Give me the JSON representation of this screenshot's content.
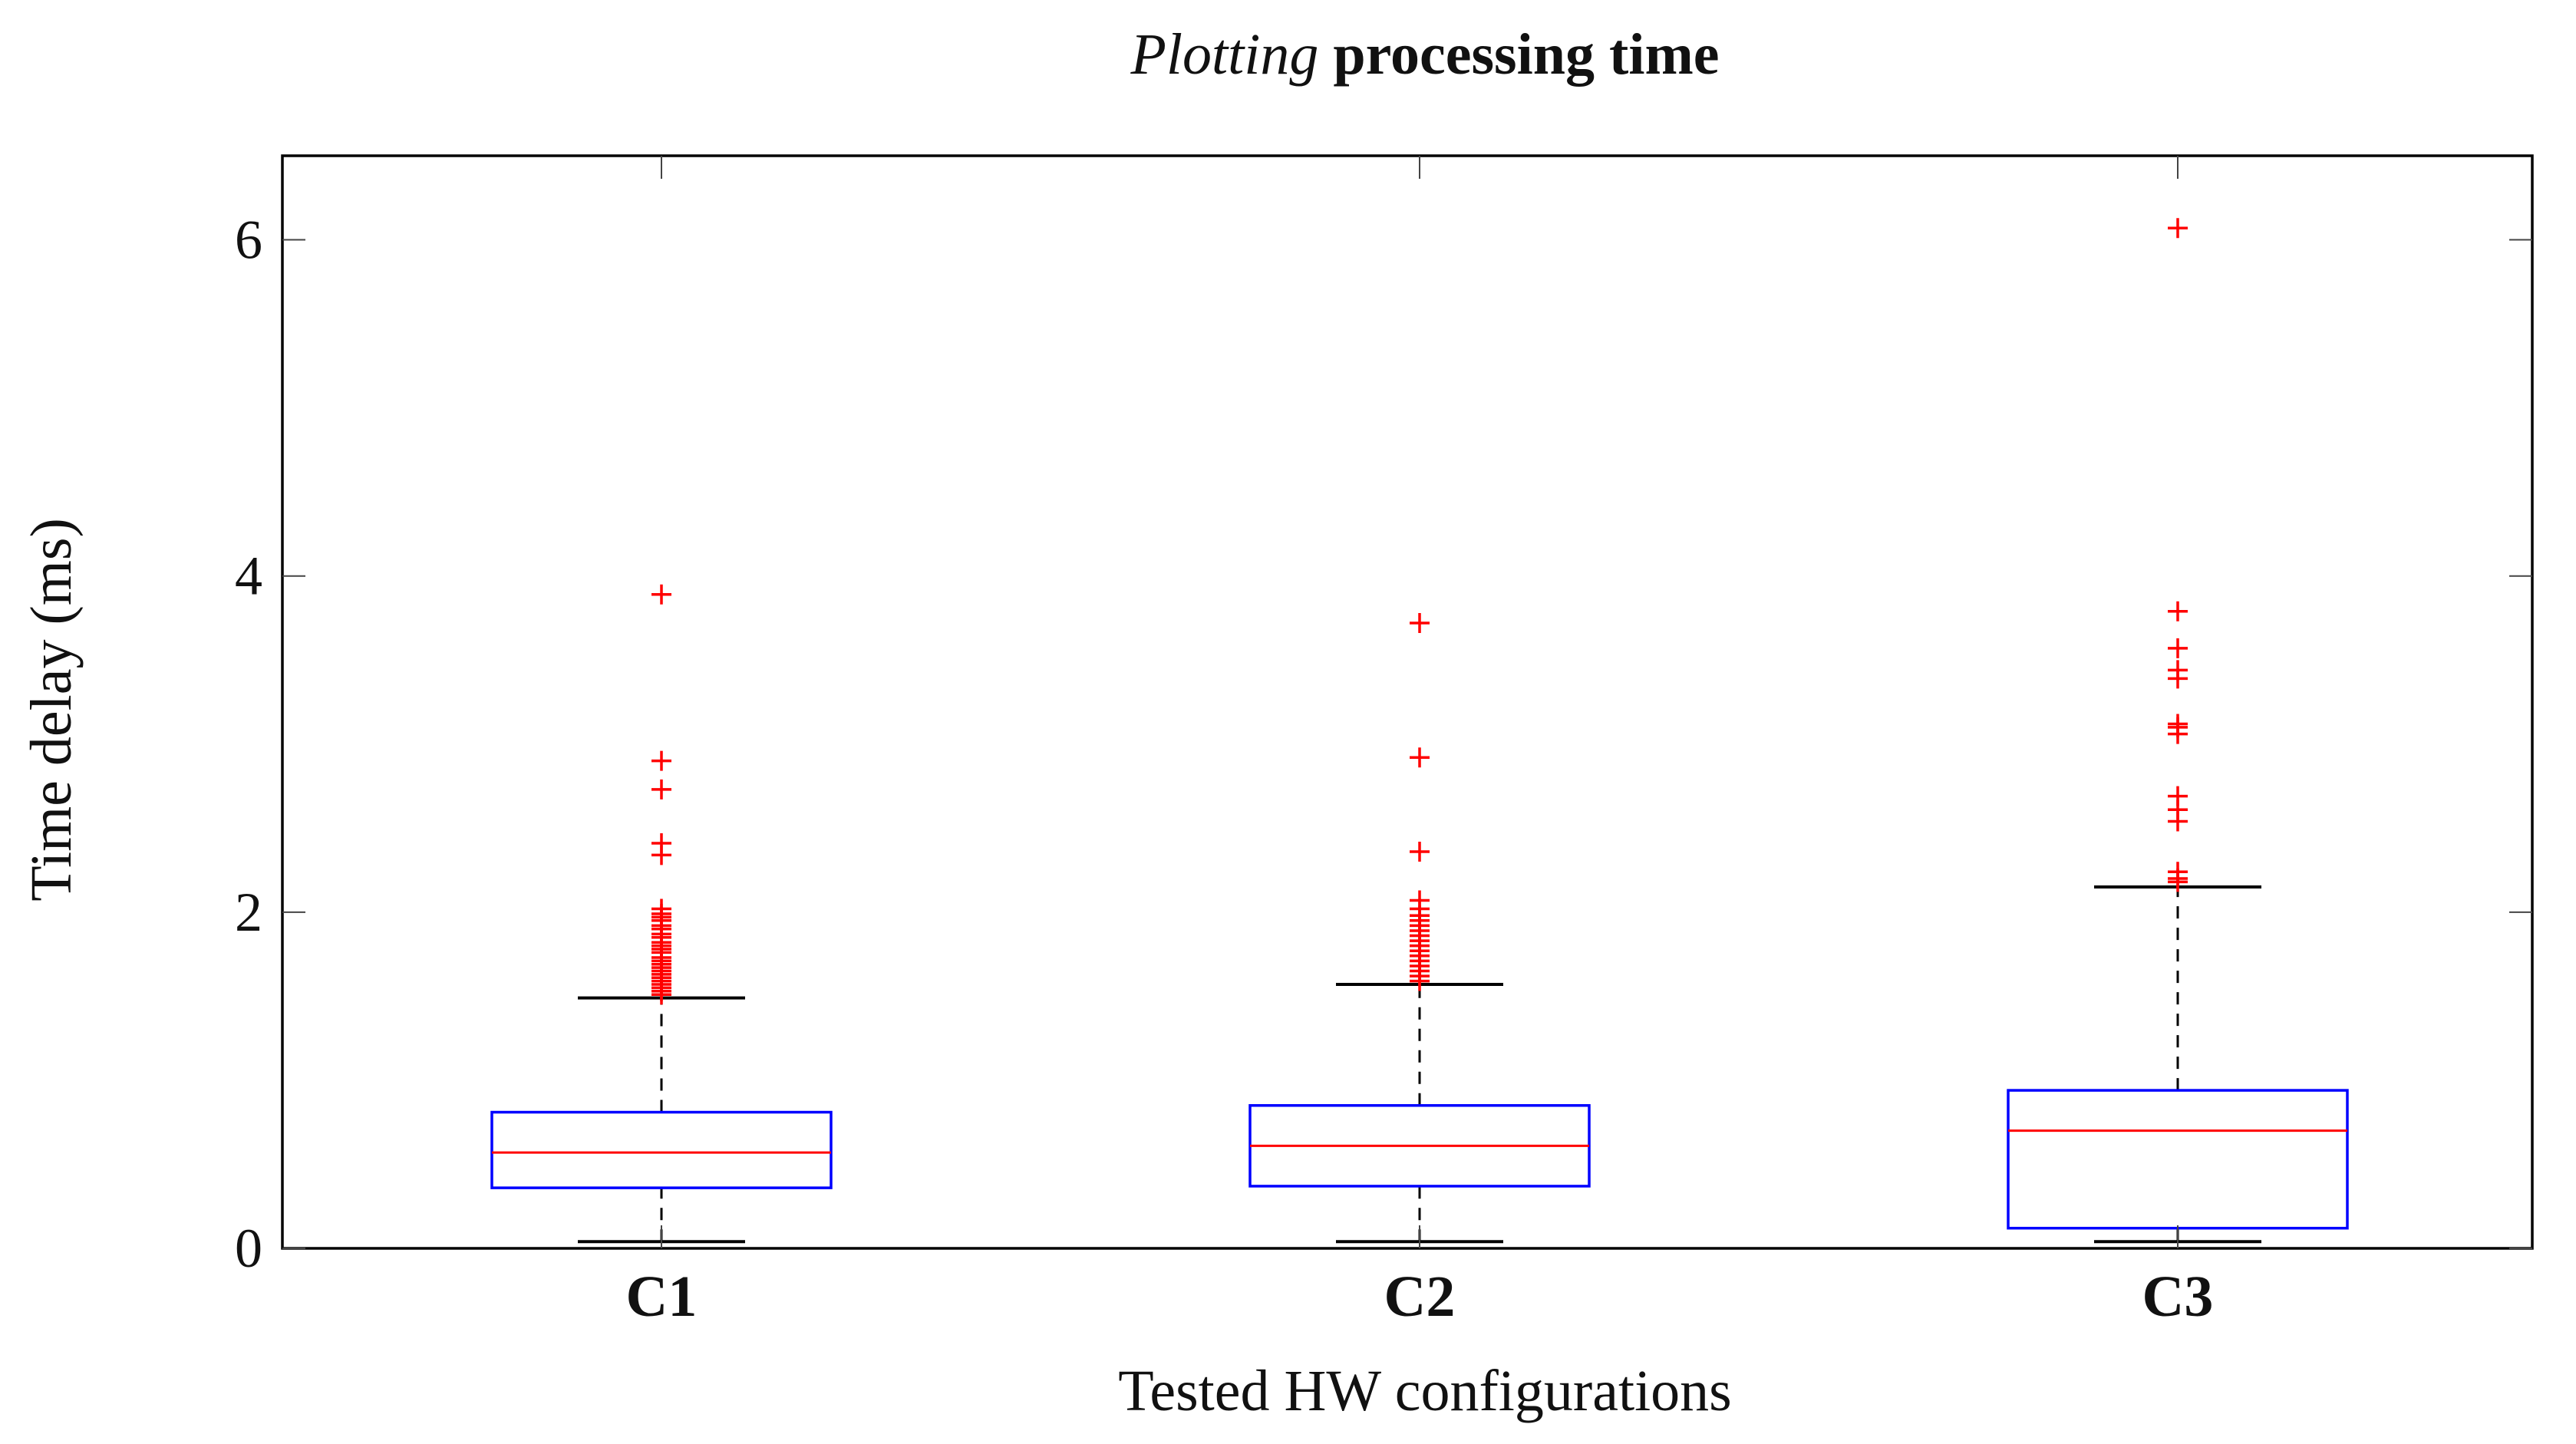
{
  "chart_data": {
    "type": "boxplot",
    "title_italic": "Plotting",
    "title_rest": " processing time",
    "xlabel": "Tested HW configurations",
    "ylabel": "Time delay (ms)",
    "ylim": [
      0,
      6.5
    ],
    "yticks": [
      0,
      2,
      4,
      6
    ],
    "ytick_labels": [
      "0",
      "2",
      "4",
      "6"
    ],
    "categories": [
      "C1",
      "C2",
      "C3"
    ],
    "boxes": [
      {
        "name": "C1",
        "whisker_low": 0.04,
        "q1": 0.36,
        "median": 0.57,
        "q3": 0.81,
        "whisker_high": 1.49,
        "outliers": [
          3.89,
          2.9,
          2.73,
          2.41,
          2.34,
          2.02,
          1.99,
          1.97,
          1.95,
          1.92,
          1.9,
          1.87,
          1.85,
          1.82,
          1.8,
          1.78,
          1.76,
          1.73,
          1.71,
          1.69,
          1.67,
          1.65,
          1.63,
          1.61,
          1.59,
          1.57,
          1.55,
          1.53,
          1.51
        ]
      },
      {
        "name": "C2",
        "whisker_low": 0.04,
        "q1": 0.37,
        "median": 0.61,
        "q3": 0.85,
        "whisker_high": 1.57,
        "outliers": [
          3.72,
          2.92,
          2.36,
          2.07,
          2.02,
          1.98,
          1.95,
          1.92,
          1.89,
          1.86,
          1.83,
          1.8,
          1.77,
          1.74,
          1.71,
          1.68,
          1.65,
          1.62,
          1.59
        ]
      },
      {
        "name": "C3",
        "whisker_low": 0.04,
        "q1": 0.12,
        "median": 0.7,
        "q3": 0.94,
        "whisker_high": 2.15,
        "outliers": [
          6.07,
          3.79,
          3.57,
          3.44,
          3.39,
          3.12,
          3.1,
          3.06,
          2.69,
          2.61,
          2.54,
          2.24,
          2.2,
          2.18
        ]
      }
    ],
    "colors": {
      "box": "#0000ff",
      "median": "#ff0000",
      "outlier": "#ff0000",
      "whisker": "#000000",
      "axis": "#000000"
    }
  }
}
